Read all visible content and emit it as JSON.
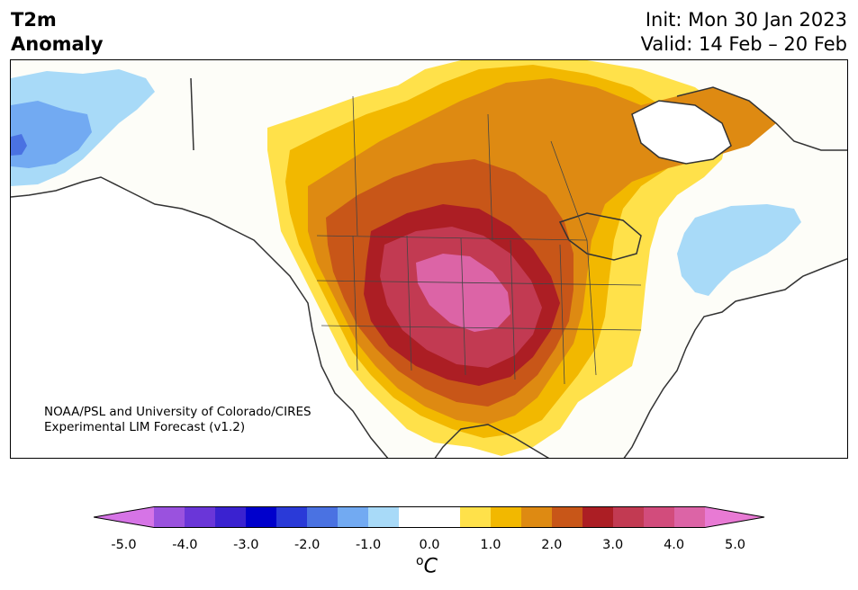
{
  "title": {
    "left_line1": "T2m",
    "left_line2": "Anomaly",
    "right_line1": "Init: Mon 30 Jan 2023",
    "right_line2": "Valid: 14 Feb – 20 Feb"
  },
  "credit": {
    "line1": "NOAA/PSL and University of Colorado/CIRES",
    "line2": "Experimental LIM Forecast (v1.2)"
  },
  "colorbar": {
    "colors": [
      "#d674e6",
      "#9a52de",
      "#6a36d8",
      "#3a22d0",
      "#0000cc",
      "#2a3ad8",
      "#4a72e2",
      "#72aaf2",
      "#a8daf8",
      "#ffffff",
      "#ffffff",
      "#ffe14a",
      "#f2b800",
      "#de8a12",
      "#c85618",
      "#ac1e24",
      "#c23a52",
      "#d24c7c",
      "#dc64a6",
      "#e87ad4"
    ],
    "ticks": [
      "-5.0",
      "-4.0",
      "-3.0",
      "-2.0",
      "-1.0",
      "0.0",
      "1.0",
      "2.0",
      "3.0",
      "4.0",
      "5.0"
    ],
    "unit_base": "C",
    "unit_sup": "o"
  }
}
